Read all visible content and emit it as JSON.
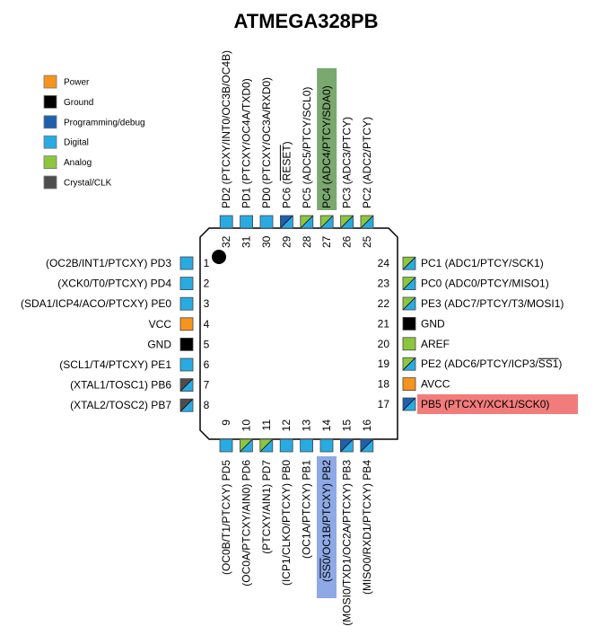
{
  "title": "ATMEGA328PB",
  "colors": {
    "power": "#f7941d",
    "ground": "#000000",
    "programming": "#1f5fad",
    "digital": "#29abe2",
    "analog": "#8cc63f",
    "crystal": "#4d4d4d",
    "highlight_green": "#7aa86e",
    "highlight_blue": "#8ea9e6",
    "highlight_red": "#f27c7c"
  },
  "legend": [
    {
      "label": "Power",
      "kind": "power"
    },
    {
      "label": "Ground",
      "kind": "ground"
    },
    {
      "label": "Programming/debug",
      "kind": "programming"
    },
    {
      "label": "Digital",
      "kind": "digital"
    },
    {
      "label": "Analog",
      "kind": "analog"
    },
    {
      "label": "Crystal/CLK",
      "kind": "crystal"
    }
  ],
  "pins": {
    "left": [
      {
        "num": "1",
        "label": "(OC2B/INT1/PTCXY) PD3",
        "types": [
          "digital"
        ]
      },
      {
        "num": "2",
        "label": "(XCK0/T0/PTCXY) PD4",
        "types": [
          "digital"
        ]
      },
      {
        "num": "3",
        "label": "(SDA1/ICP4/ACO/PTCXY) PE0",
        "types": [
          "digital"
        ]
      },
      {
        "num": "4",
        "label": "VCC",
        "types": [
          "power"
        ]
      },
      {
        "num": "5",
        "label": "GND",
        "types": [
          "ground"
        ]
      },
      {
        "num": "6",
        "label": "(SCL1/T4/PTCXY) PE1",
        "types": [
          "digital"
        ]
      },
      {
        "num": "7",
        "label": "(XTAL1/TOSC1) PB6",
        "types": [
          "crystal",
          "digital"
        ]
      },
      {
        "num": "8",
        "label": "(XTAL2/TOSC2) PB7",
        "types": [
          "crystal",
          "digital"
        ]
      }
    ],
    "bottom": [
      {
        "num": "9",
        "label": "(OC0B/T1/PTCXY) PD5",
        "types": [
          "digital"
        ]
      },
      {
        "num": "10",
        "label": "(OC0A/PTCXY/AIN0) PD6",
        "types": [
          "analog",
          "digital"
        ]
      },
      {
        "num": "11",
        "label": "(PTCXY/AIN1) PD7",
        "types": [
          "analog",
          "digital"
        ]
      },
      {
        "num": "12",
        "label": "(ICP1/CLKO/PTCXY) PB0",
        "types": [
          "digital"
        ]
      },
      {
        "num": "13",
        "label": "(OC1A/PTCXY) PB1",
        "types": [
          "digital"
        ]
      },
      {
        "num": "14",
        "label": "(SS0/OC1B/PTCXY) PB2",
        "types": [
          "digital"
        ],
        "highlight": "blue"
      },
      {
        "num": "15",
        "label": "(MOSI0/TXD1/OC2A/PTCXY) PB3",
        "types": [
          "programming",
          "digital"
        ]
      },
      {
        "num": "16",
        "label": "(MISO0/RXD1/PTCXY) PB4",
        "types": [
          "programming",
          "digital"
        ]
      }
    ],
    "right": [
      {
        "num": "17",
        "label": "PB5 (PTCXY/XCK1/SCK0)",
        "types": [
          "programming",
          "digital"
        ],
        "highlight": "red"
      },
      {
        "num": "18",
        "label": "AVCC",
        "types": [
          "power"
        ]
      },
      {
        "num": "19",
        "label": "PE2 (ADC6/PTCY/ICP3/SS1)",
        "types": [
          "analog",
          "digital"
        ]
      },
      {
        "num": "20",
        "label": "AREF",
        "types": [
          "analog"
        ]
      },
      {
        "num": "21",
        "label": "GND",
        "types": [
          "ground"
        ]
      },
      {
        "num": "22",
        "label": "PE3 (ADC7/PTCY/T3/MOSI1)",
        "types": [
          "analog",
          "digital"
        ]
      },
      {
        "num": "23",
        "label": "PC0 (ADC0/PTCY/MISO1)",
        "types": [
          "analog",
          "digital"
        ]
      },
      {
        "num": "24",
        "label": "PC1 (ADC1/PTCY/SCK1)",
        "types": [
          "analog",
          "digital"
        ]
      }
    ],
    "top": [
      {
        "num": "25",
        "label": "PC2 (ADC2/PTCY)",
        "types": [
          "analog",
          "digital"
        ]
      },
      {
        "num": "26",
        "label": "PC3 (ADC3/PTCY)",
        "types": [
          "analog",
          "digital"
        ]
      },
      {
        "num": "27",
        "label": "PC4 (ADC4/PTCY/SDA0)",
        "types": [
          "analog",
          "digital"
        ],
        "highlight": "green"
      },
      {
        "num": "28",
        "label": "PC5 (ADC5/PTCY/SCL0)",
        "types": [
          "analog",
          "digital"
        ]
      },
      {
        "num": "29",
        "label": "PC6 (RESET)",
        "types": [
          "programming",
          "digital"
        ]
      },
      {
        "num": "30",
        "label": "PD0 (PTCXY/OC3A/RXD0)",
        "types": [
          "digital"
        ]
      },
      {
        "num": "31",
        "label": "PD1 (PTCXY/OC4A/TXD0)",
        "types": [
          "digital"
        ]
      },
      {
        "num": "32",
        "label": "PD2 (PTCXY/INT0/OC3B/OC4B)",
        "types": [
          "digital"
        ]
      }
    ]
  }
}
